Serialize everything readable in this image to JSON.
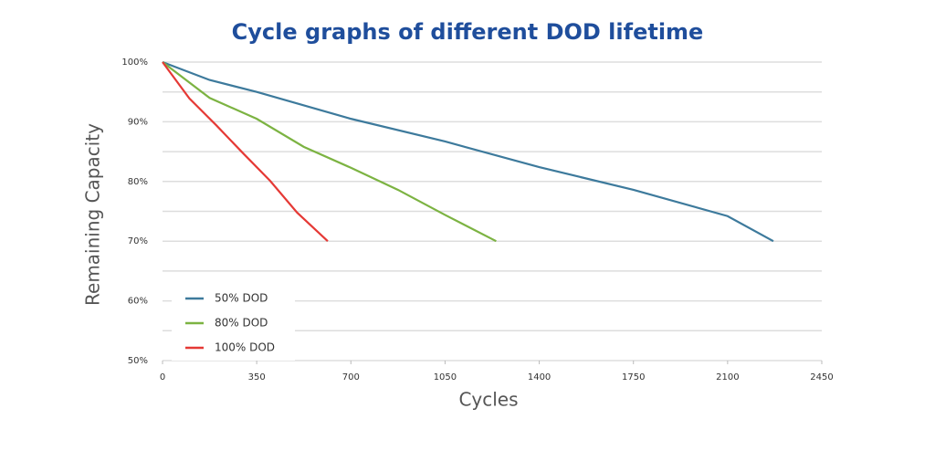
{
  "chart_data": {
    "type": "line",
    "title": "Cycle graphs of different DOD lifetime",
    "x_label": "Cycles",
    "y_label": "Remaining Capacity",
    "xlim": [
      0,
      2450
    ],
    "xticks": [
      0,
      350,
      700,
      1050,
      1400,
      1750,
      2100,
      2450
    ],
    "ylim": [
      50,
      100
    ],
    "yticks": [
      {
        "value": 50,
        "label": "50%"
      },
      {
        "value": 60,
        "label": "60%"
      },
      {
        "value": 70,
        "label": "70%"
      },
      {
        "value": 80,
        "label": "80%"
      },
      {
        "value": 90,
        "label": "90%"
      },
      {
        "value": 100,
        "label": "100%"
      }
    ],
    "minor_yticks": [
      55,
      65,
      75,
      85,
      95
    ],
    "grid": true,
    "legend": "lower left",
    "series": [
      {
        "name": "50% DOD",
        "color": "#3d7a9c",
        "x": [
          0,
          175,
          350,
          700,
          1050,
          1400,
          1750,
          2100,
          2270
        ],
        "values": [
          100,
          97,
          95,
          90.5,
          86.7,
          82.4,
          78.6,
          74.2,
          70
        ]
      },
      {
        "name": "80% DOD",
        "color": "#7cb342",
        "x": [
          0,
          175,
          350,
          525,
          700,
          875,
          1050,
          1240
        ],
        "values": [
          100,
          94,
          90.5,
          85.8,
          82.3,
          78.6,
          74.4,
          70
        ]
      },
      {
        "name": "100% DOD",
        "color": "#e53935",
        "x": [
          0,
          100,
          200,
          300,
          400,
          500,
          614
        ],
        "values": [
          100,
          93.9,
          89.4,
          84.7,
          80.1,
          74.8,
          70
        ]
      }
    ]
  }
}
